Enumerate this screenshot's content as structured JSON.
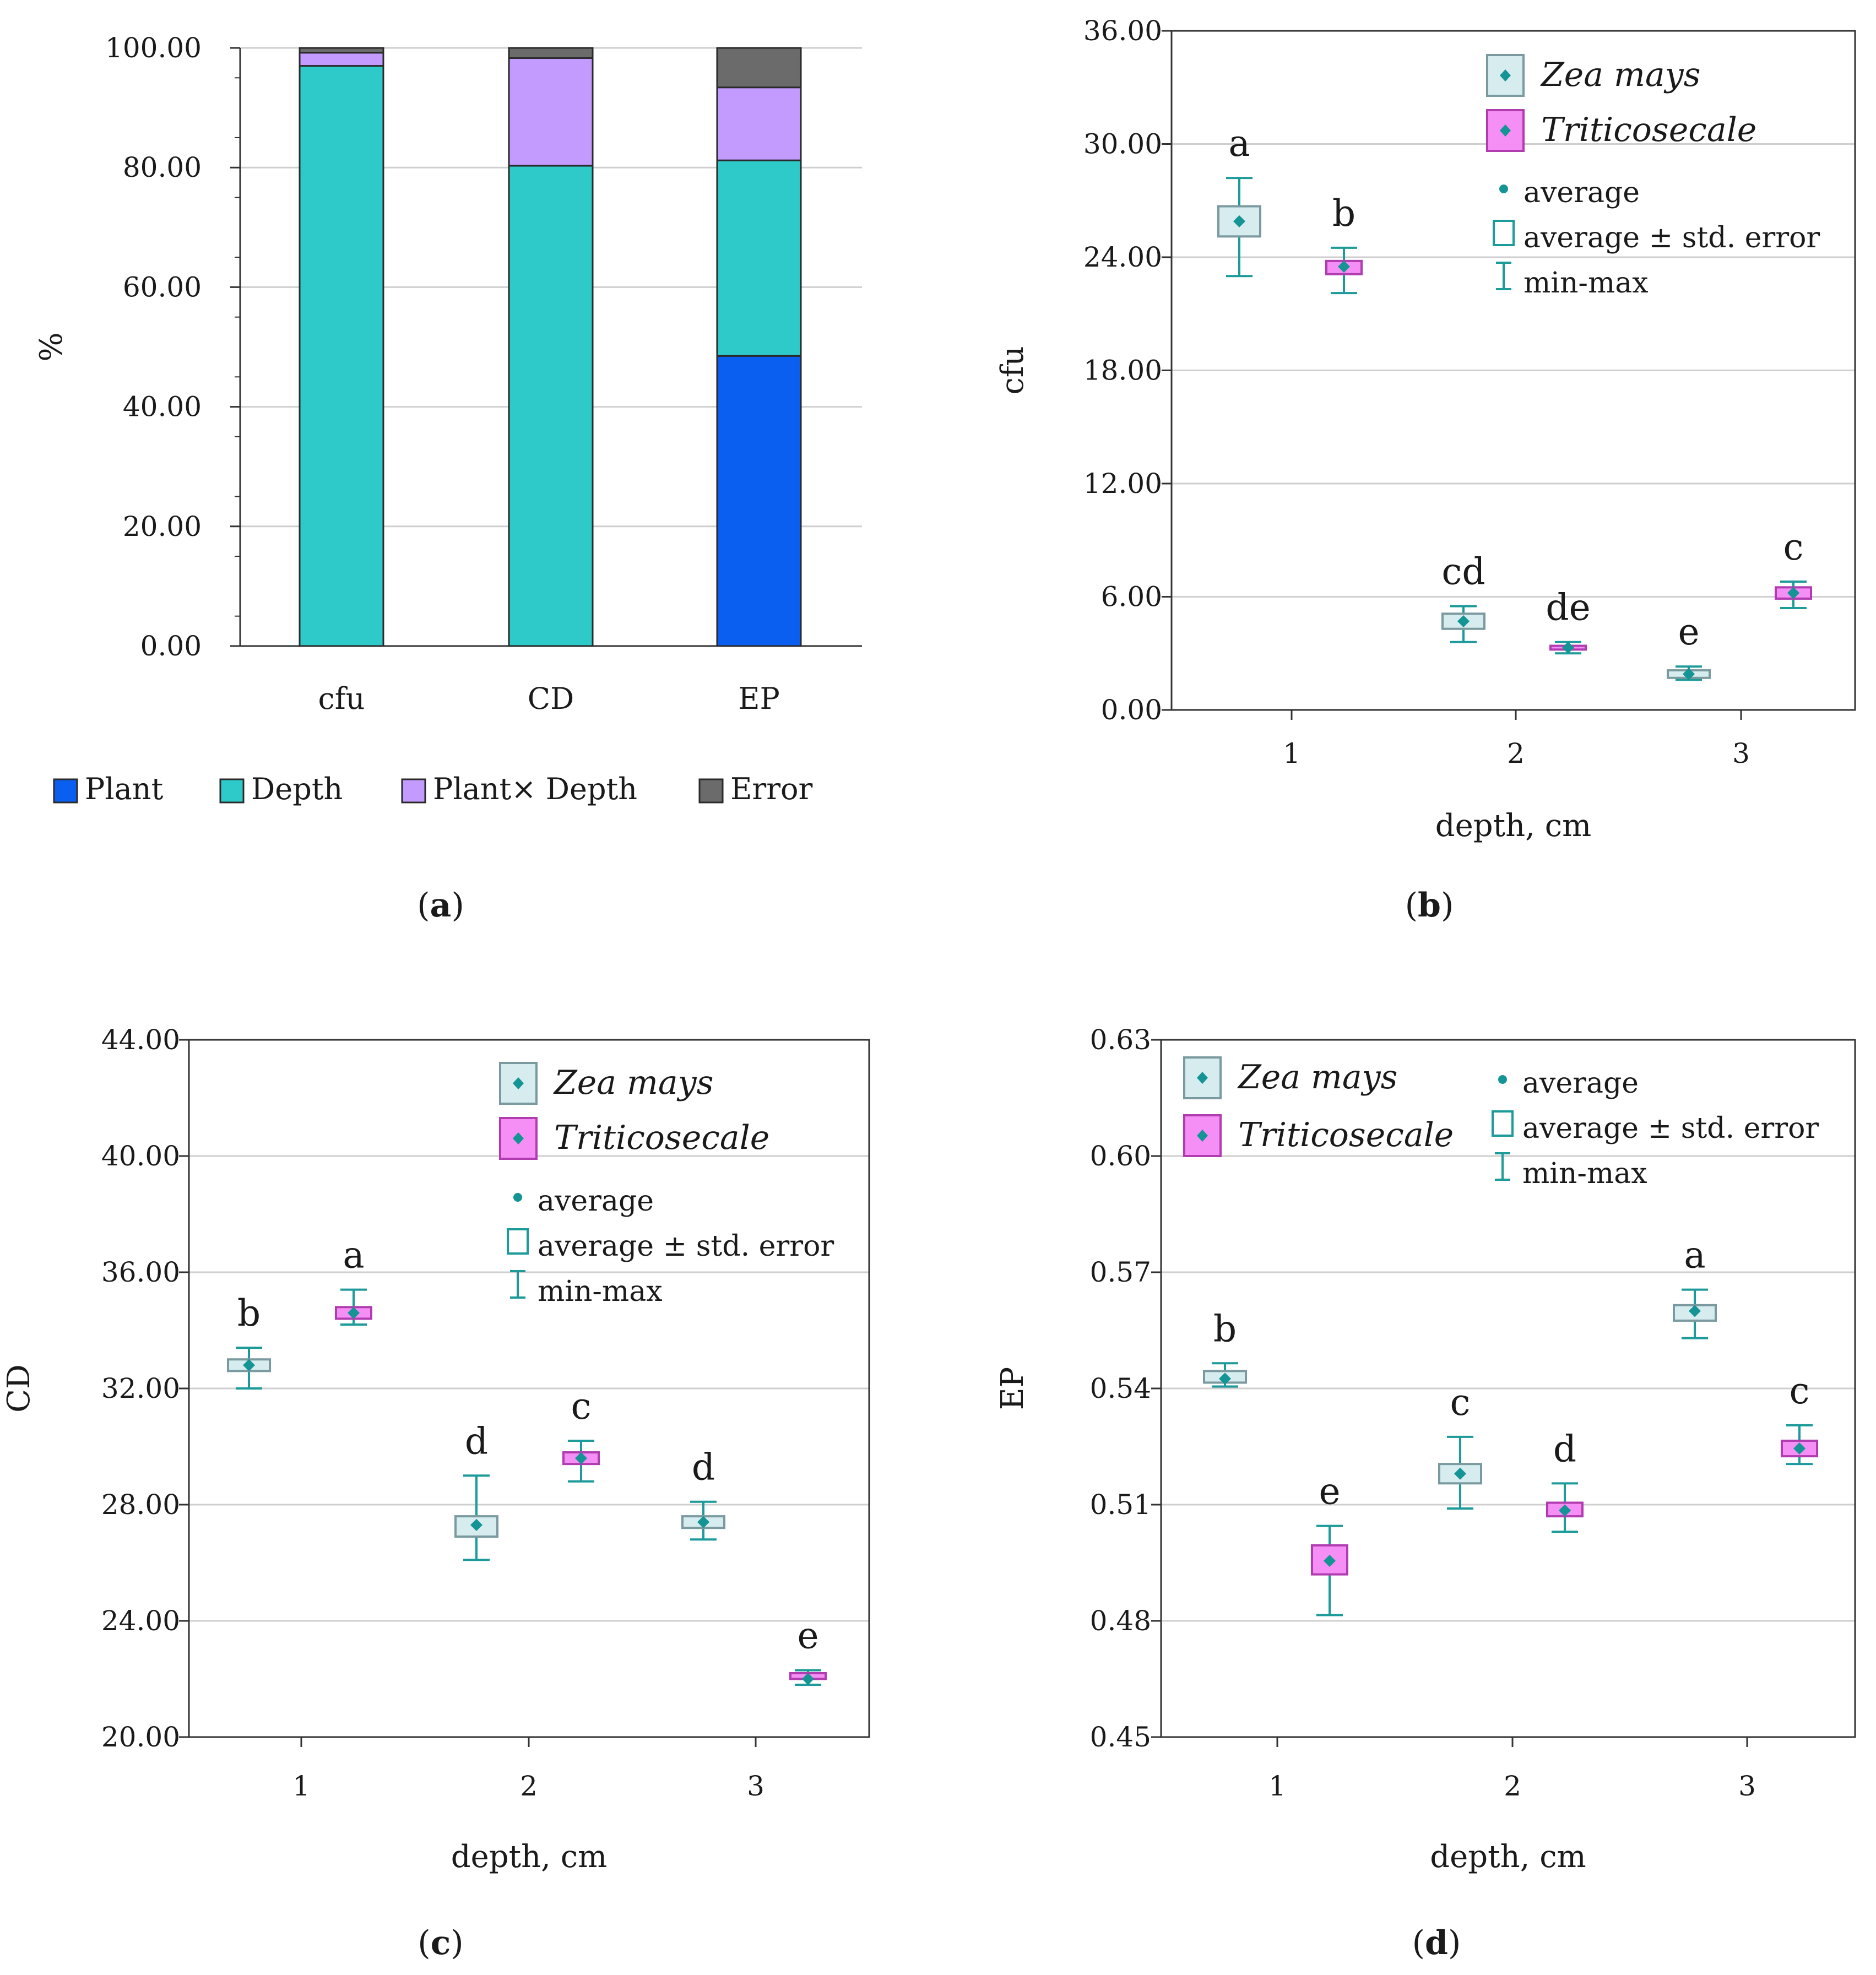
{
  "colors": {
    "plant": "#0a5ef0",
    "depth": "#2ec9c9",
    "interaction": "#c39bff",
    "error": "#6b6b6b",
    "zea_box": "#d6ecef",
    "zea_edge": "#7a9a9f",
    "tri_box": "#f58ef5",
    "tri_edge": "#b03cb0",
    "whisker": "#1d9a9a",
    "mean": "#149494",
    "grid": "#cfcfcf"
  },
  "panels": [
    {
      "label": "a",
      "open": "(",
      "close": ")"
    },
    {
      "label": "b",
      "open": "(",
      "close": ")"
    },
    {
      "label": "c",
      "open": "(",
      "close": ")"
    },
    {
      "label": "d",
      "open": "(",
      "close": ")"
    }
  ],
  "chart_data": [
    {
      "type": "bar",
      "stacked": true,
      "categories": [
        "cfu",
        "CD",
        "EP"
      ],
      "ylabel": "%",
      "ylim": [
        0,
        100
      ],
      "yticks": [
        "0.00",
        "20.00",
        "40.00",
        "60.00",
        "80.00",
        "100.00"
      ],
      "grid": true,
      "legend_position": "bottom",
      "series": [
        {
          "name": "Plant",
          "values": [
            0,
            0,
            48.5
          ]
        },
        {
          "name": "Depth",
          "values": [
            97.0,
            80.3,
            32.7
          ]
        },
        {
          "name": "Plant× Depth",
          "values": [
            2.2,
            18.0,
            12.2
          ]
        },
        {
          "name": "Error",
          "values": [
            0.8,
            1.7,
            6.6
          ]
        }
      ]
    },
    {
      "type": "box",
      "ylabel": "cfu",
      "xlabel": "depth, cm",
      "ylim": [
        0,
        36
      ],
      "yticks": [
        "0.00",
        "6.00",
        "12.00",
        "18.00",
        "24.00",
        "30.00",
        "36.00"
      ],
      "categories": [
        "1",
        "2",
        "3"
      ],
      "grid": true,
      "legend_position": "top-right",
      "legend": {
        "zea": "Zea mays",
        "tri": "Triticosecale",
        "avg": "average",
        "se": "average ± std. error",
        "mm": "min-max"
      },
      "series": [
        {
          "name": "Zea mays",
          "mean": [
            25.9,
            4.7,
            1.9
          ],
          "se_low": [
            25.1,
            4.3,
            1.7
          ],
          "se_high": [
            26.7,
            5.1,
            2.1
          ],
          "min": [
            23.0,
            3.6,
            1.6
          ],
          "max": [
            28.2,
            5.5,
            2.3
          ],
          "letters": [
            "a",
            "cd",
            "e"
          ]
        },
        {
          "name": "Triticosecale",
          "mean": [
            23.5,
            3.3,
            6.2
          ],
          "se_low": [
            23.1,
            3.2,
            5.9
          ],
          "se_high": [
            23.8,
            3.4,
            6.5
          ],
          "min": [
            22.1,
            3.0,
            5.4
          ],
          "max": [
            24.5,
            3.6,
            6.8
          ],
          "letters": [
            "b",
            "de",
            "c"
          ]
        }
      ]
    },
    {
      "type": "box",
      "ylabel": "CD",
      "xlabel": "depth, cm",
      "ylim": [
        20,
        44
      ],
      "yticks": [
        "20.00",
        "24.00",
        "28.00",
        "32.00",
        "36.00",
        "40.00",
        "44.00"
      ],
      "categories": [
        "1",
        "2",
        "3"
      ],
      "grid": true,
      "legend_position": "top-right",
      "legend": {
        "zea": "Zea mays",
        "tri": "Triticosecale",
        "avg": "average",
        "se": "average ± std. error",
        "mm": "min-max"
      },
      "series": [
        {
          "name": "Zea mays",
          "mean": [
            32.8,
            27.3,
            27.4
          ],
          "se_low": [
            32.6,
            26.9,
            27.2
          ],
          "se_high": [
            33.0,
            27.6,
            27.6
          ],
          "min": [
            32.0,
            26.1,
            26.8
          ],
          "max": [
            33.4,
            29.0,
            28.1
          ],
          "letters": [
            "b",
            "d",
            "d"
          ]
        },
        {
          "name": "Triticosecale",
          "mean": [
            34.6,
            29.6,
            22.0
          ],
          "se_low": [
            34.4,
            29.4,
            22.0
          ],
          "se_high": [
            34.8,
            29.8,
            22.2
          ],
          "min": [
            34.2,
            28.8,
            21.8
          ],
          "max": [
            35.4,
            30.2,
            22.3
          ],
          "letters": [
            "a",
            "c",
            "e"
          ]
        }
      ]
    },
    {
      "type": "box",
      "ylabel": "EP",
      "xlabel": "depth, cm",
      "ylim": [
        0.45,
        0.63
      ],
      "yticks": [
        "0.45",
        "0.48",
        "0.51",
        "0.54",
        "0.57",
        "0.60",
        "0.63"
      ],
      "categories": [
        "1",
        "2",
        "3"
      ],
      "grid": true,
      "legend_position": "top",
      "legend": {
        "zea": "Zea mays",
        "tri": "Triticosecale",
        "avg": "average",
        "se": "average ± std. error",
        "mm": "min-max"
      },
      "series": [
        {
          "name": "Zea mays",
          "mean": [
            0.5425,
            0.518,
            0.56
          ],
          "se_low": [
            0.5415,
            0.5155,
            0.5575
          ],
          "se_high": [
            0.5445,
            0.5205,
            0.5615
          ],
          "min": [
            0.5405,
            0.509,
            0.553
          ],
          "max": [
            0.5465,
            0.5275,
            0.5655
          ],
          "letters": [
            "b",
            "c",
            "a"
          ]
        },
        {
          "name": "Triticosecale",
          "mean": [
            0.4955,
            0.5085,
            0.5245
          ],
          "se_low": [
            0.492,
            0.507,
            0.5225
          ],
          "se_high": [
            0.4995,
            0.5105,
            0.5265
          ],
          "min": [
            0.4815,
            0.503,
            0.5205
          ],
          "max": [
            0.5045,
            0.5155,
            0.5305
          ],
          "letters": [
            "e",
            "d",
            "c"
          ]
        }
      ]
    }
  ]
}
